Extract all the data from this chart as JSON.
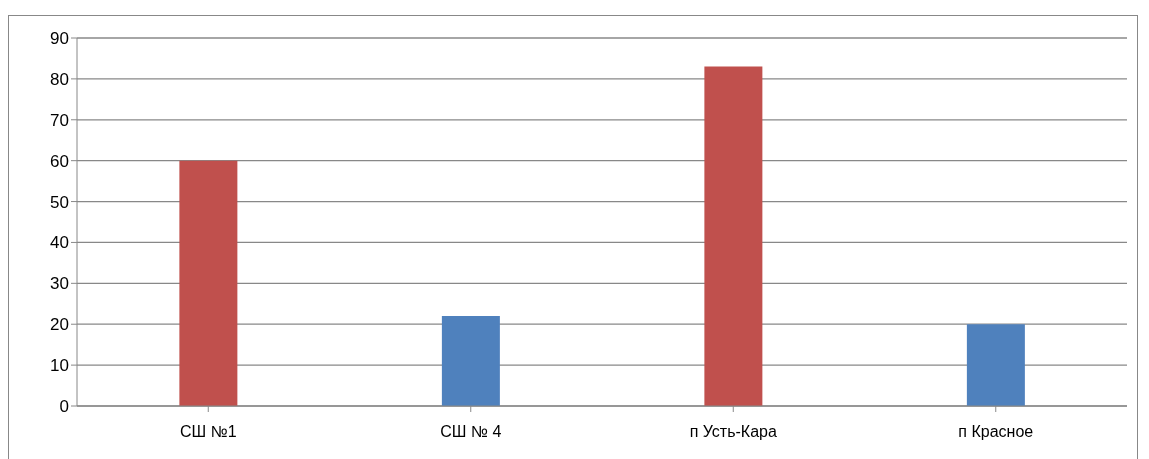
{
  "chart_data": {
    "type": "bar",
    "categories": [
      "СШ №1",
      "СШ № 4",
      "п Усть-Кара",
      "п Красное"
    ],
    "values": [
      60,
      22,
      83,
      20
    ],
    "colors": [
      "#c0504d",
      "#4f81bd",
      "#c0504d",
      "#4f81bd"
    ],
    "ylim": [
      0,
      90
    ],
    "yticks": [
      0,
      10,
      20,
      30,
      40,
      50,
      60,
      70,
      80,
      90
    ],
    "grid": "y",
    "legend": false
  }
}
